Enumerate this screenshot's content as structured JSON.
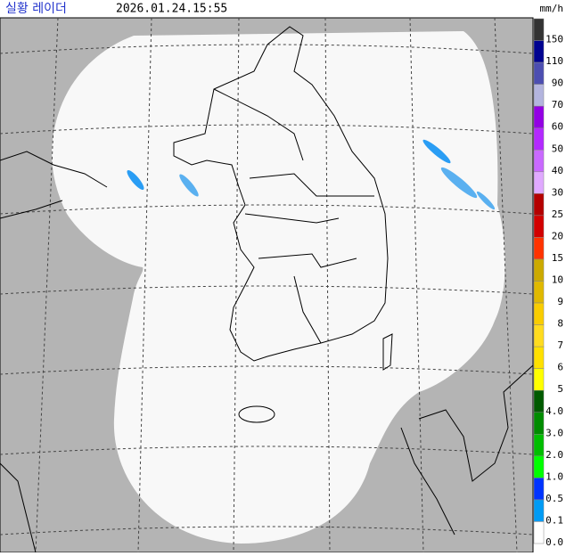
{
  "header": {
    "title": "실황 레이더",
    "timestamp": "2026.01.24.15:55",
    "unit": "mm/h"
  },
  "legend": {
    "items": [
      {
        "label": "150",
        "color": "#333333"
      },
      {
        "label": "110",
        "color": "#000390"
      },
      {
        "label": "90",
        "color": "#4c4eb1"
      },
      {
        "label": "70",
        "color": "#b3b4de"
      },
      {
        "label": "60",
        "color": "#9300e4"
      },
      {
        "label": "50",
        "color": "#b329ff"
      },
      {
        "label": "40",
        "color": "#c969ff"
      },
      {
        "label": "30",
        "color": "#e0a9ff"
      },
      {
        "label": "25",
        "color": "#b40000"
      },
      {
        "label": "20",
        "color": "#d20000"
      },
      {
        "label": "15",
        "color": "#ff3300"
      },
      {
        "label": "10",
        "color": "#ccaa00"
      },
      {
        "label": "9",
        "color": "#e0b900"
      },
      {
        "label": "8",
        "color": "#f9cd00"
      },
      {
        "label": "7",
        "color": "#ffdc1f"
      },
      {
        "label": "6",
        "color": "#ffe100"
      },
      {
        "label": "5",
        "color": "#ffff00"
      },
      {
        "label": "4.0",
        "color": "#005a00"
      },
      {
        "label": "3.0",
        "color": "#008c00"
      },
      {
        "label": "2.0",
        "color": "#00be00"
      },
      {
        "label": "1.0",
        "color": "#00ff00"
      },
      {
        "label": "0.5",
        "color": "#0033ff"
      },
      {
        "label": "0.1",
        "color": "#009bf5"
      },
      {
        "label": "0.0",
        "color": "#ffffff"
      }
    ]
  }
}
